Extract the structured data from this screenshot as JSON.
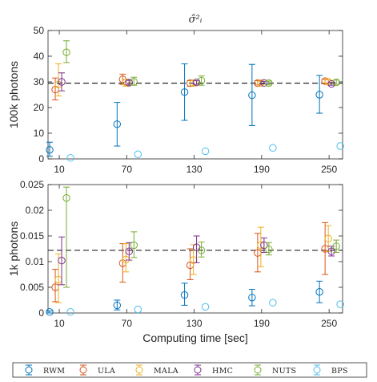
{
  "chart_data": [
    {
      "type": "errorbar",
      "title": "σ̂²ᵢ",
      "ylabel": "100k photons",
      "xlabel": "",
      "ylim": [
        0,
        50
      ],
      "yticks": [
        0,
        10,
        20,
        30,
        40,
        50
      ],
      "x_ticks": [
        10,
        70,
        130,
        190,
        250
      ],
      "reference_line": 29.5,
      "series": [
        {
          "name": "RWM",
          "color": "#0072BD",
          "offset": -12,
          "points": [
            [
              10,
              3.5,
              1.0,
              6.5
            ],
            [
              70,
              13.5,
              5.0,
              22.0
            ],
            [
              130,
              26.0,
              15.0,
              37.0
            ],
            [
              190,
              24.8,
              13.0,
              36.8
            ],
            [
              250,
              25.0,
              17.8,
              32.5
            ]
          ]
        },
        {
          "name": "ULA",
          "color": "#D95319",
          "offset": -5,
          "points": [
            [
              10,
              27.0,
              23.0,
              31.5
            ],
            [
              70,
              31.0,
              29.0,
              33.0
            ],
            [
              130,
              29.5,
              28.3,
              30.5
            ],
            [
              190,
              29.5,
              28.8,
              30.5
            ],
            [
              250,
              30.3,
              29.5,
              31.0
            ]
          ]
        },
        {
          "name": "MALA",
          "color": "#EDB120",
          "offset": -1,
          "points": [
            [
              10,
              29.0,
              24.5,
              37.0
            ],
            [
              70,
              29.8,
              28.3,
              31.0
            ],
            [
              130,
              29.5,
              28.5,
              30.5
            ],
            [
              190,
              29.5,
              29.0,
              30.2
            ],
            [
              250,
              30.0,
              29.3,
              30.8
            ]
          ]
        },
        {
          "name": "HMC",
          "color": "#7E2F8E",
          "offset": 3,
          "points": [
            [
              10,
              30.0,
              26.5,
              33.5
            ],
            [
              70,
              29.7,
              28.8,
              30.6
            ],
            [
              130,
              29.8,
              29.0,
              30.5
            ],
            [
              190,
              29.6,
              29.2,
              30.2
            ],
            [
              250,
              29.2,
              28.7,
              29.8
            ]
          ]
        },
        {
          "name": "NUTS",
          "color": "#77AC30",
          "offset": 9,
          "points": [
            [
              10,
              41.5,
              37.5,
              46.0
            ],
            [
              70,
              30.0,
              28.7,
              31.8
            ],
            [
              130,
              30.5,
              28.7,
              32.3
            ],
            [
              190,
              29.5,
              28.8,
              30.3
            ],
            [
              250,
              29.8,
              29.0,
              30.7
            ]
          ]
        },
        {
          "name": "BPS",
          "color": "#4DBEEE",
          "offset": 14,
          "points": [
            [
              10,
              0.4,
              null,
              null
            ],
            [
              70,
              1.8,
              null,
              null
            ],
            [
              130,
              3.0,
              null,
              null
            ],
            [
              190,
              4.3,
              null,
              null
            ],
            [
              250,
              5.0,
              null,
              null
            ]
          ]
        }
      ]
    },
    {
      "type": "errorbar",
      "title": "",
      "ylabel": "1k photons",
      "xlabel": "Computing time [sec]",
      "ylim": [
        0,
        0.025
      ],
      "yticks": [
        0,
        0.005,
        0.01,
        0.015,
        0.02,
        0.025
      ],
      "ytick_labels": [
        "0",
        "0.005",
        "0.01",
        "0.015",
        "0.02",
        "0.025"
      ],
      "x_ticks": [
        10,
        70,
        130,
        190,
        250
      ],
      "reference_line": 0.0122,
      "series": [
        {
          "name": "RWM",
          "color": "#0072BD",
          "offset": -12,
          "points": [
            [
              10,
              0.0002,
              0.0,
              0.0004
            ],
            [
              70,
              0.0015,
              0.0006,
              0.0025
            ],
            [
              130,
              0.0035,
              0.0015,
              0.0058
            ],
            [
              190,
              0.003,
              0.0014,
              0.0046
            ],
            [
              250,
              0.0041,
              0.002,
              0.0062
            ]
          ]
        },
        {
          "name": "ULA",
          "color": "#D95319",
          "offset": -5,
          "points": [
            [
              10,
              0.005,
              0.0022,
              0.0085
            ],
            [
              70,
              0.0097,
              0.006,
              0.0135
            ],
            [
              130,
              0.0093,
              0.0065,
              0.0125
            ],
            [
              190,
              0.0117,
              0.008,
              0.0155
            ],
            [
              250,
              0.0125,
              0.0075,
              0.0176
            ]
          ]
        },
        {
          "name": "MALA",
          "color": "#EDB120",
          "offset": -1,
          "points": [
            [
              10,
              0.0065,
              0.002,
              0.0115
            ],
            [
              70,
              0.0104,
              0.008,
              0.0135
            ],
            [
              130,
              0.0103,
              0.0075,
              0.0133
            ],
            [
              190,
              0.0132,
              0.009,
              0.0167
            ],
            [
              250,
              0.0145,
              0.012,
              0.017
            ]
          ]
        },
        {
          "name": "HMC",
          "color": "#7E2F8E",
          "offset": 3,
          "points": [
            [
              10,
              0.0102,
              0.0055,
              0.0148
            ],
            [
              70,
              0.012,
              0.0103,
              0.0137
            ],
            [
              130,
              0.0128,
              0.0098,
              0.015
            ],
            [
              190,
              0.0132,
              0.0118,
              0.0146
            ],
            [
              250,
              0.012,
              0.0111,
              0.013
            ]
          ]
        },
        {
          "name": "NUTS",
          "color": "#77AC30",
          "offset": 9,
          "points": [
            [
              10,
              0.0224,
              0.005,
              0.0245
            ],
            [
              70,
              0.0132,
              0.0108,
              0.0158
            ],
            [
              130,
              0.0122,
              0.0109,
              0.0138
            ],
            [
              190,
              0.0124,
              0.0113,
              0.0137
            ],
            [
              250,
              0.013,
              0.0118,
              0.0142
            ]
          ]
        },
        {
          "name": "BPS",
          "color": "#4DBEEE",
          "offset": 14,
          "points": [
            [
              10,
              0.0002,
              null,
              null
            ],
            [
              70,
              0.0007,
              null,
              null
            ],
            [
              130,
              0.0012,
              null,
              null
            ],
            [
              190,
              0.002,
              null,
              null
            ],
            [
              250,
              0.0017,
              null,
              null
            ]
          ]
        }
      ]
    }
  ],
  "legend": {
    "placement": "bottom",
    "items": [
      "RWM",
      "ULA",
      "MALA",
      "HMC",
      "NUTS",
      "BPS"
    ]
  }
}
